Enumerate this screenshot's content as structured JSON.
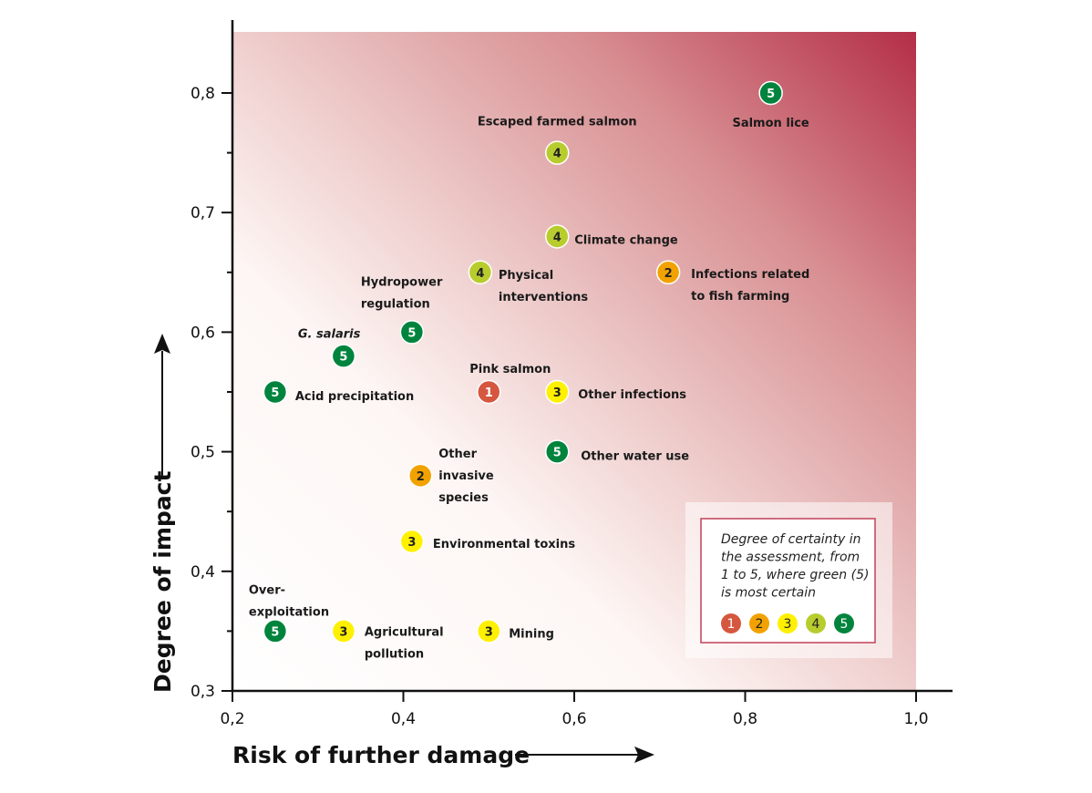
{
  "chart_data": {
    "type": "scatter",
    "title": "",
    "xlabel": "Risk of further damage",
    "ylabel": "Degree of impact",
    "xlim": [
      0.2,
      1.0
    ],
    "ylim": [
      0.3,
      0.85
    ],
    "xticks": [
      "0,2",
      "0,4",
      "0,6",
      "0,8",
      "1,0"
    ],
    "xtick_values": [
      0.2,
      0.4,
      0.6,
      0.8,
      1.0
    ],
    "yticks": [
      "0,3",
      "0,4",
      "0,5",
      "0,6",
      "0,7",
      "0,8"
    ],
    "ytick_values": [
      0.3,
      0.4,
      0.5,
      0.6,
      0.7,
      0.8
    ],
    "grid": false,
    "background": "gradient from white (low risk, low impact) to dark red (high risk, high impact)",
    "certainty_colors": {
      "1": "#d6573f",
      "2": "#f2a200",
      "3": "#fff000",
      "4": "#b8cc2e",
      "5": "#00843d"
    },
    "points": [
      {
        "label": [
          "Salmon lice"
        ],
        "x": 0.83,
        "y": 0.8,
        "certainty": 5
      },
      {
        "label": [
          "Escaped farmed salmon"
        ],
        "x": 0.58,
        "y": 0.75,
        "certainty": 4
      },
      {
        "label": [
          "Climate change"
        ],
        "x": 0.58,
        "y": 0.68,
        "certainty": 4
      },
      {
        "label": [
          "Physical",
          "interventions"
        ],
        "x": 0.49,
        "y": 0.65,
        "certainty": 4
      },
      {
        "label": [
          "Infections related",
          "to fish farming"
        ],
        "x": 0.71,
        "y": 0.65,
        "certainty": 2
      },
      {
        "label": [
          "Hydropower",
          "regulation"
        ],
        "x": 0.41,
        "y": 0.6,
        "certainty": 5
      },
      {
        "label": [
          "G. salaris"
        ],
        "x": 0.33,
        "y": 0.58,
        "certainty": 5
      },
      {
        "label": [
          "Acid precipitation"
        ],
        "x": 0.25,
        "y": 0.55,
        "certainty": 5
      },
      {
        "label": [
          "Pink salmon"
        ],
        "x": 0.5,
        "y": 0.55,
        "certainty": 1
      },
      {
        "label": [
          "Other infections"
        ],
        "x": 0.58,
        "y": 0.55,
        "certainty": 3
      },
      {
        "label": [
          "Other water use"
        ],
        "x": 0.58,
        "y": 0.5,
        "certainty": 5
      },
      {
        "label": [
          "Other",
          "invasive",
          "species"
        ],
        "x": 0.42,
        "y": 0.48,
        "certainty": 2
      },
      {
        "label": [
          "Environmental toxins"
        ],
        "x": 0.41,
        "y": 0.425,
        "certainty": 3
      },
      {
        "label": [
          "Over-",
          "exploitation"
        ],
        "x": 0.25,
        "y": 0.35,
        "certainty": 5
      },
      {
        "label": [
          "Agricultural",
          "pollution"
        ],
        "x": 0.33,
        "y": 0.35,
        "certainty": 3
      },
      {
        "label": [
          "Mining"
        ],
        "x": 0.5,
        "y": 0.35,
        "certainty": 3
      }
    ],
    "legend": {
      "title": [
        "Degree of certainty in",
        "the assessment, from",
        "1 to 5, where green (5)",
        "is most certain"
      ],
      "entries": [
        "1",
        "2",
        "3",
        "4",
        "5"
      ],
      "placement": "bottom-right"
    }
  }
}
